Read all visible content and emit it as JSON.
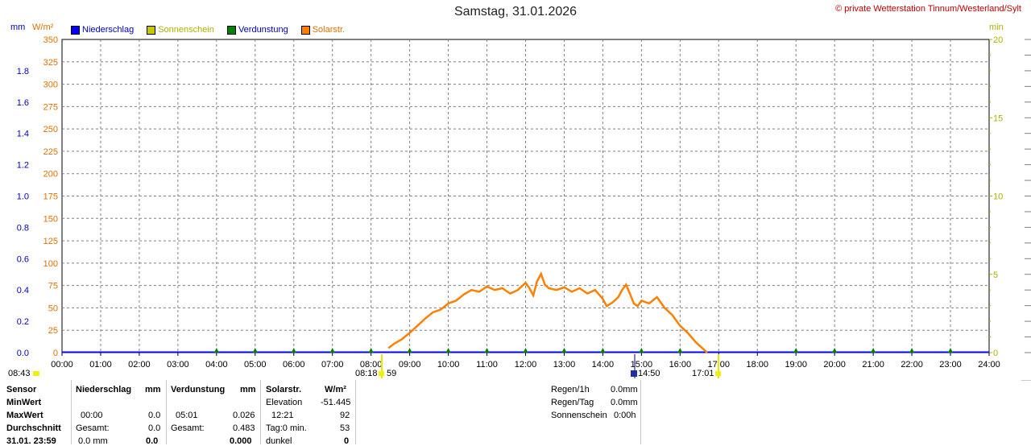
{
  "title": "Samstag, 31.01.2026",
  "copyright": "© private Wetterstation Tinnum/Westerland/Sylt",
  "units": {
    "mm": "mm",
    "wm2": "W/m²",
    "min": "min"
  },
  "legend": [
    {
      "label": "Niederschlag",
      "color": "#0000ff",
      "text_color": "#0000c0"
    },
    {
      "label": "Sonnenschein",
      "color": "#c8c800",
      "text_color": "#b0b000"
    },
    {
      "label": "Verdunstung",
      "color": "#008000",
      "text_color": "#0000c0"
    },
    {
      "label": "Solarstr.",
      "color": "#ff8000",
      "text_color": "#e07000"
    }
  ],
  "markers": {
    "left_time": "08:43",
    "sunrise": "08:18",
    "sunrise_min": "59",
    "noon": "14:50",
    "sunset": "17:01"
  },
  "chart_data": {
    "type": "line",
    "xlabel": "",
    "x_ticks": [
      "00:00",
      "01:00",
      "02:00",
      "03:00",
      "04:00",
      "05:00",
      "06:00",
      "07:00",
      "08:00",
      "09:00",
      "10:00",
      "11:00",
      "12:00",
      "13:00",
      "14:00",
      "15:00",
      "16:00",
      "17:00",
      "18:00",
      "19:00",
      "20:00",
      "21:00",
      "22:00",
      "23:00",
      "24:00"
    ],
    "y_left_mm": {
      "label": "mm",
      "ylim": [
        0,
        2.0
      ],
      "ticks": [
        "0.0",
        "0.2",
        "0.4",
        "0.6",
        "0.8",
        "1.0",
        "1.2",
        "1.4",
        "1.6",
        "1.8"
      ]
    },
    "y_left_wm2": {
      "label": "W/m²",
      "ylim": [
        0,
        350
      ],
      "ticks": [
        "0",
        "25",
        "50",
        "75",
        "100",
        "125",
        "150",
        "175",
        "200",
        "225",
        "250",
        "275",
        "300",
        "325",
        "350"
      ]
    },
    "y_right_min": {
      "label": "min",
      "ylim": [
        0,
        20
      ],
      "ticks": [
        "0",
        "5",
        "10",
        "15",
        "20"
      ]
    },
    "grid": true,
    "series": [
      {
        "name": "Solarstr.",
        "color": "#ff8000",
        "unit": "W/m²",
        "x_hours": [
          8.45,
          8.6,
          8.8,
          9.0,
          9.2,
          9.4,
          9.6,
          9.8,
          10.0,
          10.2,
          10.4,
          10.6,
          10.8,
          11.0,
          11.2,
          11.4,
          11.6,
          11.8,
          12.0,
          12.1,
          12.2,
          12.3,
          12.4,
          12.5,
          12.6,
          12.8,
          13.0,
          13.2,
          13.4,
          13.6,
          13.8,
          14.0,
          14.1,
          14.25,
          14.4,
          14.5,
          14.6,
          14.7,
          14.8,
          14.9,
          15.0,
          15.2,
          15.4,
          15.6,
          15.8,
          16.0,
          16.2,
          16.4,
          16.6,
          16.7
        ],
        "values": [
          5,
          10,
          15,
          22,
          30,
          38,
          45,
          48,
          55,
          58,
          65,
          70,
          68,
          74,
          70,
          72,
          66,
          70,
          78,
          72,
          64,
          80,
          88,
          76,
          72,
          70,
          73,
          68,
          72,
          66,
          70,
          60,
          52,
          56,
          62,
          70,
          76,
          66,
          55,
          52,
          58,
          55,
          62,
          50,
          42,
          30,
          22,
          12,
          4,
          0
        ]
      },
      {
        "name": "Niederschlag",
        "color": "#0000ff",
        "unit": "mm",
        "constant": 0.0
      },
      {
        "name": "Verdunstung",
        "color": "#008000",
        "unit": "mm",
        "marker_hours": [
          4,
          5,
          6,
          7,
          8,
          9,
          10,
          11,
          12,
          13,
          14,
          15,
          16,
          19,
          20,
          21,
          22,
          23
        ]
      },
      {
        "name": "Sonnenschein",
        "color": "#c8c800",
        "unit": "min",
        "constant": 0
      }
    ]
  },
  "stats": {
    "sensor": "Sensor",
    "minwert": "MinWert",
    "maxwert": "MaxWert",
    "durchschnitt": "Durchschnitt",
    "datetime": "31.01. 23:59",
    "niederschlag": {
      "header": "Niederschlag",
      "unit": "mm",
      "max_time": "00:00",
      "max_val": "0.0",
      "gesamt_label": "Gesamt:",
      "gesamt_val": "0.0",
      "cur_val": "0.0 mm",
      "cur_bold": "0.0"
    },
    "verdunstung": {
      "header": "Verdunstung",
      "unit": "mm",
      "max_time": "05:01",
      "max_val": "0.026",
      "gesamt_label": "Gesamt:",
      "gesamt_val": "0.483",
      "cur_bold": "0.000"
    },
    "solar": {
      "header": "Solarstr.",
      "unit": "W/m²",
      "elev_label": "Elevation",
      "elev_val": "-51.445",
      "max_time": "12:21",
      "max_val": "92",
      "tag_label": "Tag:0 min.",
      "tag_val": "53",
      "dunkel_label": "dunkel",
      "dunkel_val": "0"
    },
    "right": {
      "regen1h_label": "Regen/1h",
      "regen1h_val": "0.0mm",
      "regentag_label": "Regen/Tag",
      "regentag_val": "0.0mm",
      "sonne_label": "Sonnenschein",
      "sonne_val": "0:00h"
    }
  }
}
